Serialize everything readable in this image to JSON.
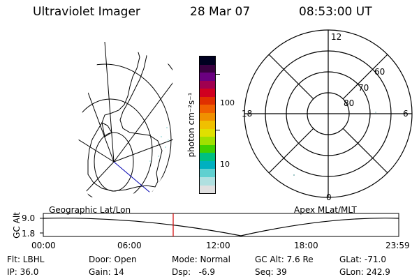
{
  "header": {
    "instrument": "Ultraviolet Imager",
    "date": "28 Mar 07",
    "time": "08:53:00 UT"
  },
  "colorbar": {
    "unit_label": "photon cm⁻²s⁻¹",
    "tick_labels": [
      "100",
      "10"
    ],
    "scale": "log",
    "colors": [
      "#000020",
      "#3a0040",
      "#6a0080",
      "#a00050",
      "#d00020",
      "#e03000",
      "#f06000",
      "#f09000",
      "#f0c000",
      "#e0e000",
      "#a0e000",
      "#40d000",
      "#00c080",
      "#00b0c0",
      "#60d0d0",
      "#b0e0e0",
      "#e0e0e0"
    ]
  },
  "polar_plot": {
    "clock_labels": {
      "top": "12",
      "left": "18",
      "right": "6",
      "bottom": "0"
    },
    "ring_labels": [
      "60",
      "70",
      "80"
    ]
  },
  "map_labels": {
    "left": "Geographic Lat/Lon",
    "right": "Apex MLat/MLT"
  },
  "altitude_panel": {
    "ylabel": "GC Alt",
    "yticks": [
      "9.0",
      "1.8"
    ],
    "xticks": [
      "00:00",
      "06:00",
      "12:00",
      "18:00",
      "23:59"
    ]
  },
  "info": {
    "filter": "Flt: LBHL",
    "ip": "IP: 36.0",
    "door": "Door: Open",
    "gain": "Gain: 14",
    "mode": "Mode: Normal",
    "dsp": "Dsp:   -6.9",
    "gc_alt": "GC Alt: 7.6 Re",
    "seq": "Seq: 39",
    "glat": "GLat: -71.0",
    "glon": "GLon: 242.9"
  }
}
